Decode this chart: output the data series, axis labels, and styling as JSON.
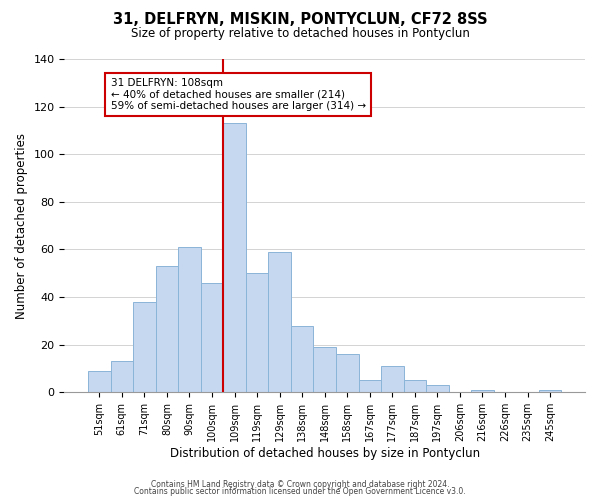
{
  "title": "31, DELFRYN, MISKIN, PONTYCLUN, CF72 8SS",
  "subtitle": "Size of property relative to detached houses in Pontyclun",
  "xlabel": "Distribution of detached houses by size in Pontyclun",
  "ylabel": "Number of detached properties",
  "bar_labels": [
    "51sqm",
    "61sqm",
    "71sqm",
    "80sqm",
    "90sqm",
    "100sqm",
    "109sqm",
    "119sqm",
    "129sqm",
    "138sqm",
    "148sqm",
    "158sqm",
    "167sqm",
    "177sqm",
    "187sqm",
    "197sqm",
    "206sqm",
    "216sqm",
    "226sqm",
    "235sqm",
    "245sqm"
  ],
  "bar_values": [
    9,
    13,
    38,
    53,
    61,
    46,
    113,
    50,
    59,
    28,
    19,
    16,
    5,
    11,
    5,
    3,
    0,
    1,
    0,
    0,
    1
  ],
  "bar_color": "#c5d8f0",
  "bar_edge_color": "#8ab4d8",
  "vline_index": 6,
  "vline_color": "#cc0000",
  "annotation_title": "31 DELFRYN: 108sqm",
  "annotation_line1": "← 40% of detached houses are smaller (214)",
  "annotation_line2": "59% of semi-detached houses are larger (314) →",
  "annotation_box_color": "#ffffff",
  "annotation_box_edge": "#cc0000",
  "ylim": [
    0,
    140
  ],
  "yticks": [
    0,
    20,
    40,
    60,
    80,
    100,
    120,
    140
  ],
  "footer1": "Contains HM Land Registry data © Crown copyright and database right 2024.",
  "footer2": "Contains public sector information licensed under the Open Government Licence v3.0."
}
